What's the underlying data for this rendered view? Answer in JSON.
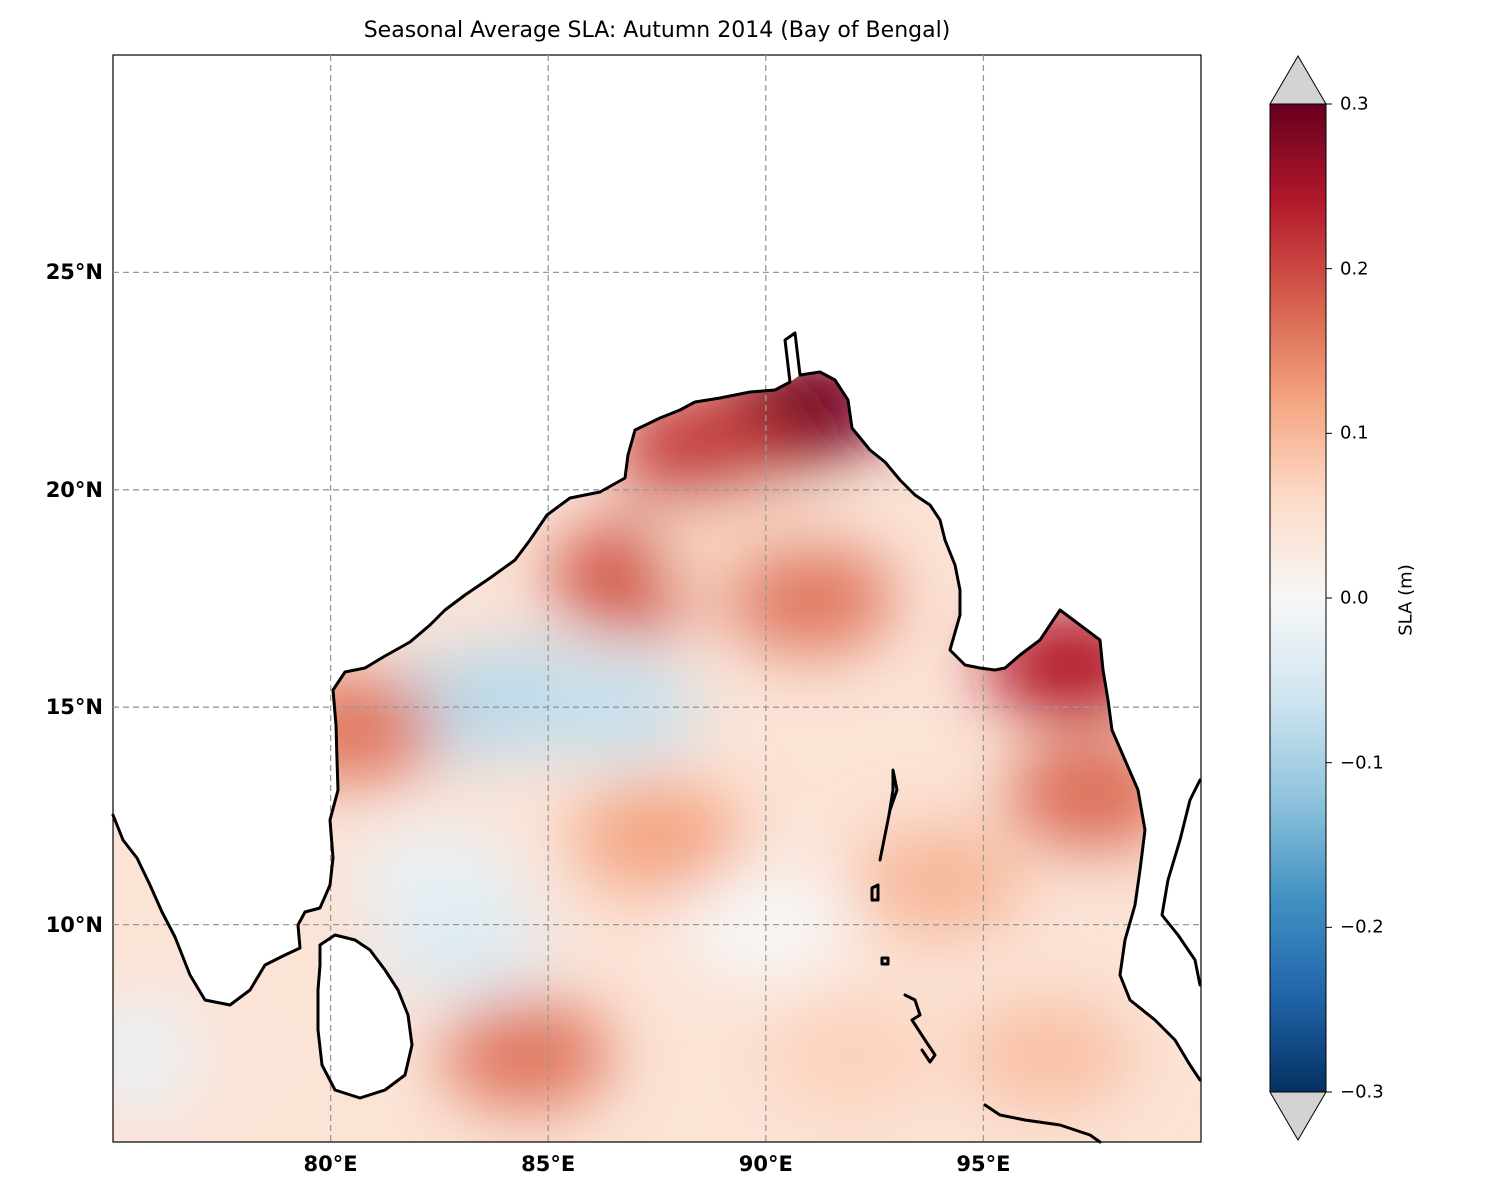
{
  "title": "Seasonal Average SLA: Autumn 2014 (Bay of Bengal)",
  "map": {
    "lon_ticks": [
      "80°E",
      "85°E",
      "90°E",
      "95°E"
    ],
    "lat_ticks": [
      "10°N",
      "15°N",
      "20°N",
      "25°N"
    ],
    "gridlines": true,
    "coastline_color": "#000000"
  },
  "colorbar": {
    "label": "SLA (m)",
    "ticks": [
      "−0.3",
      "−0.2",
      "−0.1",
      "0.0",
      "0.1",
      "0.2",
      "0.3"
    ],
    "range": [
      -0.3,
      0.3
    ],
    "colormap": "RdBu_r",
    "extend": "both"
  },
  "chart_data": {
    "type": "heatmap",
    "title": "Seasonal Average SLA: Autumn 2014 (Bay of Bengal)",
    "x_range": [
      75,
      100
    ],
    "y_range": [
      5,
      30
    ],
    "xlabel": "",
    "ylabel": "",
    "value_range": [
      -0.3,
      0.3
    ],
    "colorbar_label": "SLA (m)",
    "features": [
      {
        "lon": 90.0,
        "lat": 21.5,
        "sla": 0.22
      },
      {
        "lon": 91.0,
        "lat": 22.0,
        "sla": 0.29
      },
      {
        "lon": 88.5,
        "lat": 21.0,
        "sla": 0.21
      },
      {
        "lon": 87.0,
        "lat": 18.0,
        "sla": 0.19
      },
      {
        "lon": 89.5,
        "lat": 18.5,
        "sla": 0.06
      },
      {
        "lon": 91.0,
        "lat": 17.5,
        "sla": 0.16
      },
      {
        "lon": 97.0,
        "lat": 16.0,
        "sla": 0.24
      },
      {
        "lon": 97.5,
        "lat": 13.0,
        "sla": 0.17
      },
      {
        "lon": 84.5,
        "lat": 15.2,
        "sla": -0.09
      },
      {
        "lon": 83.0,
        "lat": 15.0,
        "sla": -0.08
      },
      {
        "lon": 86.5,
        "lat": 15.0,
        "sla": -0.07
      },
      {
        "lon": 82.5,
        "lat": 11.0,
        "sla": -0.02
      },
      {
        "lon": 83.0,
        "lat": 9.5,
        "sla": -0.04
      },
      {
        "lon": 87.5,
        "lat": 12.0,
        "sla": 0.12
      },
      {
        "lon": 84.5,
        "lat": 7.0,
        "sla": 0.16
      },
      {
        "lon": 80.5,
        "lat": 14.5,
        "sla": 0.16
      },
      {
        "lon": 90.0,
        "lat": 10.0,
        "sla": 0.0
      },
      {
        "lon": 94.0,
        "lat": 11.0,
        "sla": 0.1
      },
      {
        "lon": 76.0,
        "lat": 7.0,
        "sla": -0.02
      },
      {
        "lon": 78.5,
        "lat": 7.0,
        "sla": 0.04
      },
      {
        "lon": 92.0,
        "lat": 7.0,
        "sla": 0.07
      },
      {
        "lon": 96.5,
        "lat": 7.0,
        "sla": 0.09
      }
    ]
  }
}
